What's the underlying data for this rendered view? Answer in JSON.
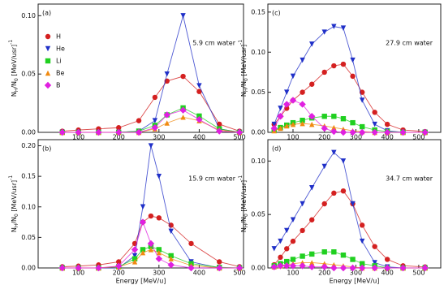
{
  "chart_data": [
    {
      "type": "line",
      "label": "(a)",
      "annotation": "5.9 cm water",
      "legend": true,
      "ylabel": [
        "N",
        "H",
        "/N",
        "0",
        " [MeV/usr]",
        "-1"
      ],
      "xlim": [
        0,
        510
      ],
      "xticks": [
        100,
        200,
        300,
        400,
        500
      ],
      "ylim": [
        0,
        0.11
      ],
      "yticks": [
        {
          "value": 0,
          "label": "0.00"
        },
        {
          "value": 0.05,
          "label": "0.05"
        },
        {
          "value": 0.1,
          "label": "0.10"
        }
      ],
      "x": [
        60,
        100,
        150,
        200,
        250,
        290,
        320,
        360,
        400,
        450,
        500
      ],
      "series": [
        {
          "name": "H",
          "color": "#d42020",
          "marker": "circle",
          "values": [
            0.001,
            0.002,
            0.003,
            0.004,
            0.01,
            0.03,
            0.044,
            0.048,
            0.035,
            0.007,
            0.001
          ]
        },
        {
          "name": "He",
          "color": "#2030c8",
          "marker": "down",
          "values": [
            0,
            0,
            0,
            0,
            0.001,
            0.01,
            0.05,
            0.1,
            0.04,
            0.003,
            0
          ]
        },
        {
          "name": "Li",
          "color": "#20d020",
          "marker": "square",
          "values": [
            0,
            0,
            0,
            0,
            0.001,
            0.006,
            0.015,
            0.021,
            0.014,
            0.003,
            0
          ]
        },
        {
          "name": "Be",
          "color": "#f08a10",
          "marker": "up",
          "values": [
            0,
            0,
            0,
            0,
            0,
            0.003,
            0.008,
            0.013,
            0.01,
            0.002,
            0
          ]
        },
        {
          "name": "B",
          "color": "#e020e0",
          "marker": "diamond",
          "values": [
            0,
            0,
            0,
            0,
            0,
            0.004,
            0.015,
            0.019,
            0.011,
            0.001,
            0
          ]
        }
      ]
    },
    {
      "type": "line",
      "label": "(b)",
      "annotation": "15.9 cm water",
      "xlabel": "Energy [MeV/u]",
      "ylabel": [
        "N",
        "H",
        "/N",
        "0",
        " [MeV/usr]",
        "-1"
      ],
      "xlim": [
        0,
        510
      ],
      "xticks": [
        100,
        200,
        300,
        400,
        500
      ],
      "ylim": [
        0,
        0.21
      ],
      "yticks": [
        {
          "value": 0,
          "label": "0.00"
        },
        {
          "value": 0.05,
          "label": "0.05"
        },
        {
          "value": 0.1,
          "label": "0.10"
        },
        {
          "value": 0.15,
          "label": "0.15"
        },
        {
          "value": 0.2,
          "label": "0.20"
        }
      ],
      "x": [
        60,
        100,
        150,
        200,
        240,
        260,
        280,
        300,
        330,
        380,
        450,
        500
      ],
      "series": [
        {
          "color": "#d42020",
          "marker": "circle",
          "values": [
            0.002,
            0.003,
            0.005,
            0.01,
            0.04,
            0.075,
            0.085,
            0.082,
            0.07,
            0.04,
            0.01,
            0.002
          ]
        },
        {
          "color": "#2030c8",
          "marker": "down",
          "values": [
            0,
            0,
            0,
            0,
            0.02,
            0.1,
            0.2,
            0.15,
            0.06,
            0.01,
            0,
            0
          ]
        },
        {
          "color": "#20d020",
          "marker": "square",
          "values": [
            0,
            0,
            0,
            0.002,
            0.015,
            0.03,
            0.035,
            0.03,
            0.02,
            0.007,
            0.001,
            0
          ]
        },
        {
          "color": "#f08a10",
          "marker": "up",
          "values": [
            0,
            0,
            0,
            0.002,
            0.01,
            0.025,
            0.03,
            0.025,
            0.015,
            0.004,
            0,
            0
          ]
        },
        {
          "color": "#e020e0",
          "marker": "diamond",
          "values": [
            0,
            0,
            0,
            0.003,
            0.03,
            0.075,
            0.04,
            0.015,
            0.005,
            0,
            0,
            0
          ]
        }
      ]
    },
    {
      "type": "line",
      "label": "(c)",
      "annotation": "27.9 cm water",
      "ylabel": [
        "N",
        "H",
        "/N",
        "0",
        " [MeV/usr]",
        "-1"
      ],
      "xlim": [
        20,
        570
      ],
      "xticks": [
        100,
        200,
        300,
        400,
        500
      ],
      "ylim": [
        0,
        0.16
      ],
      "yticks": [
        {
          "value": 0,
          "label": "0.00"
        },
        {
          "value": 0.05,
          "label": "0.05"
        },
        {
          "value": 0.1,
          "label": "0.10"
        },
        {
          "value": 0.15,
          "label": "0.15"
        }
      ],
      "x": [
        40,
        60,
        80,
        100,
        130,
        160,
        200,
        230,
        260,
        290,
        320,
        360,
        400,
        450,
        520
      ],
      "series": [
        {
          "color": "#d42020",
          "marker": "circle",
          "values": [
            0.01,
            0.02,
            0.03,
            0.04,
            0.05,
            0.06,
            0.075,
            0.083,
            0.085,
            0.07,
            0.05,
            0.025,
            0.01,
            0.003,
            0.001
          ]
        },
        {
          "color": "#2030c8",
          "marker": "down",
          "values": [
            0.01,
            0.03,
            0.05,
            0.07,
            0.09,
            0.11,
            0.125,
            0.132,
            0.13,
            0.09,
            0.04,
            0.01,
            0.002,
            0,
            0
          ]
        },
        {
          "color": "#20d020",
          "marker": "square",
          "values": [
            0.003,
            0.006,
            0.009,
            0.012,
            0.015,
            0.018,
            0.02,
            0.02,
            0.017,
            0.012,
            0.007,
            0.003,
            0.001,
            0,
            0
          ]
        },
        {
          "color": "#f08a10",
          "marker": "up",
          "values": [
            0.002,
            0.005,
            0.008,
            0.01,
            0.011,
            0.01,
            0.008,
            0.006,
            0.004,
            0.002,
            0.001,
            0,
            0,
            0,
            0
          ]
        },
        {
          "color": "#e020e0",
          "marker": "diamond",
          "values": [
            0.005,
            0.02,
            0.035,
            0.04,
            0.035,
            0.02,
            0.005,
            0.001,
            0,
            0,
            0,
            0,
            0,
            0,
            0
          ]
        }
      ]
    },
    {
      "type": "line",
      "label": "(d)",
      "annotation": "34.7 cm water",
      "xlabel": "Energy [MeV/u]",
      "ylabel": [
        "N",
        "H",
        "/N",
        "0",
        " [MeV/usr]",
        "-1"
      ],
      "xlim": [
        20,
        570
      ],
      "xticks": [
        100,
        200,
        300,
        400,
        500
      ],
      "ylim": [
        0,
        0.12
      ],
      "yticks": [
        {
          "value": 0,
          "label": "0.00"
        },
        {
          "value": 0.05,
          "label": "0.05"
        },
        {
          "value": 0.1,
          "label": "0.10"
        }
      ],
      "x": [
        40,
        60,
        80,
        100,
        130,
        160,
        200,
        230,
        260,
        290,
        320,
        360,
        400,
        450,
        520
      ],
      "series": [
        {
          "color": "#d42020",
          "marker": "circle",
          "values": [
            0.003,
            0.01,
            0.018,
            0.025,
            0.035,
            0.045,
            0.06,
            0.07,
            0.072,
            0.06,
            0.04,
            0.02,
            0.008,
            0.002,
            0.001
          ]
        },
        {
          "color": "#2030c8",
          "marker": "down",
          "values": [
            0.018,
            0.025,
            0.035,
            0.045,
            0.06,
            0.075,
            0.095,
            0.108,
            0.1,
            0.06,
            0.025,
            0.005,
            0.001,
            0,
            0
          ]
        },
        {
          "color": "#20d020",
          "marker": "square",
          "values": [
            0.002,
            0.004,
            0.006,
            0.008,
            0.011,
            0.013,
            0.015,
            0.015,
            0.012,
            0.008,
            0.004,
            0.002,
            0,
            0,
            0
          ]
        },
        {
          "color": "#f08a10",
          "marker": "up",
          "values": [
            0.001,
            0.002,
            0.003,
            0.004,
            0.005,
            0.005,
            0.004,
            0.003,
            0.002,
            0.001,
            0,
            0,
            0,
            0,
            0
          ]
        },
        {
          "color": "#e020e0",
          "marker": "diamond",
          "values": [
            0.001,
            0.002,
            0.002,
            0.002,
            0.002,
            0.001,
            0.001,
            0,
            0,
            0,
            0,
            0,
            0,
            0,
            0
          ]
        }
      ]
    }
  ]
}
